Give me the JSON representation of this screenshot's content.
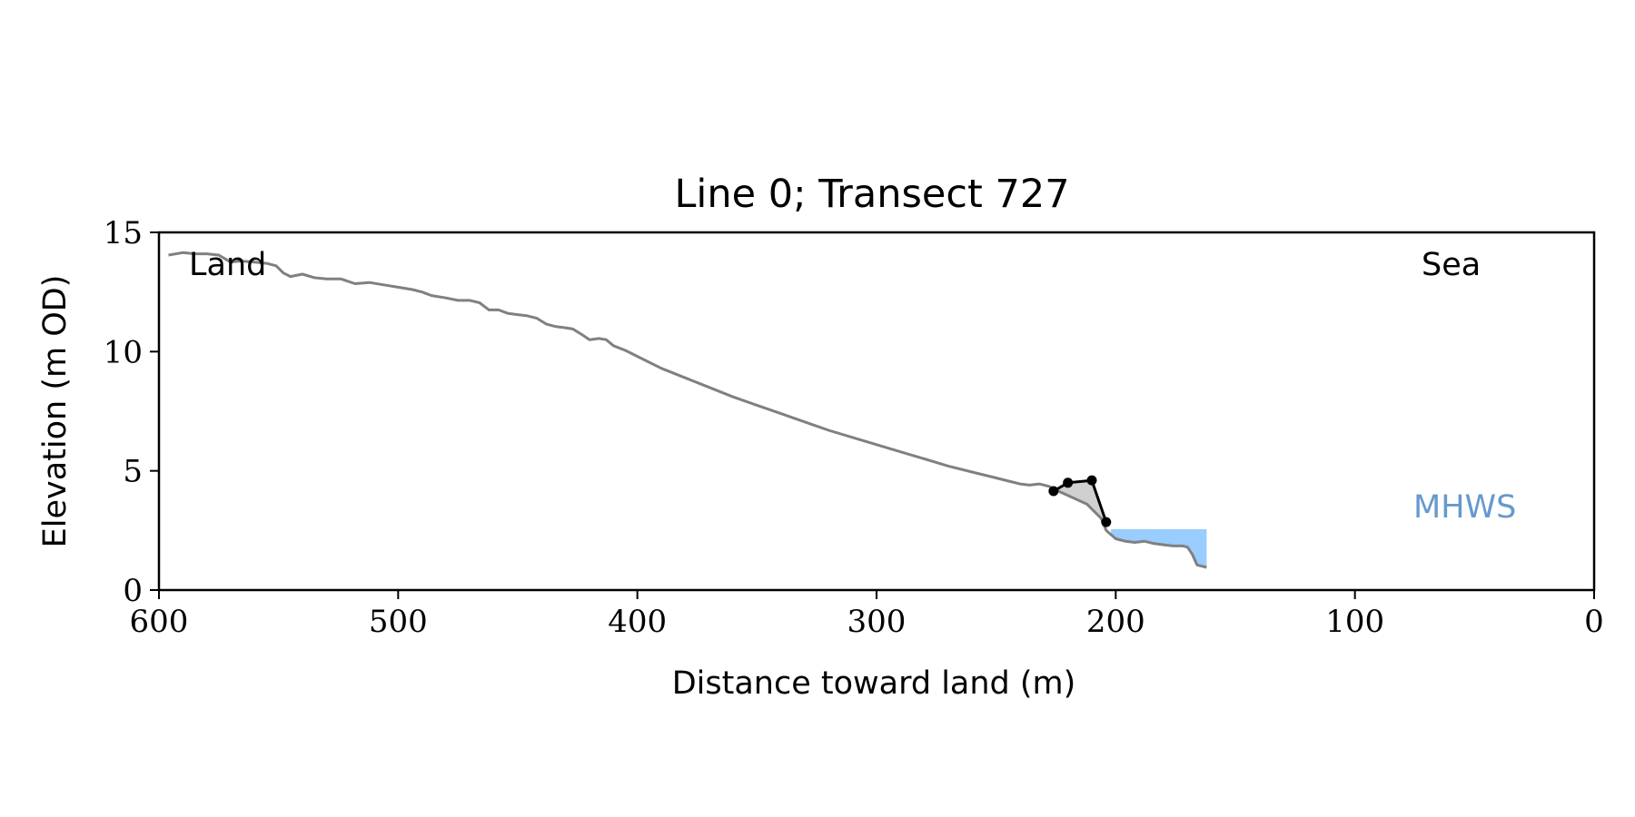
{
  "chart_data": {
    "type": "line",
    "title": "Line 0; Transect 727",
    "xlabel": "Distance toward land (m)",
    "ylabel": "Elevation (m OD)",
    "xlim": [
      600,
      0
    ],
    "ylim": [
      0,
      15
    ],
    "x_ticks": [
      600,
      500,
      400,
      300,
      200,
      100,
      0
    ],
    "y_ticks": [
      0,
      5,
      10,
      15
    ],
    "grid": false,
    "annotations": {
      "land": "Land",
      "sea": "Sea",
      "mhws": "MHWS"
    },
    "colors": {
      "profile": "#808080",
      "dune": "#000000",
      "dune_fill": "#d0d0d0",
      "mhws_fill": "#99ccff",
      "mhws_text": "#6699cc"
    },
    "series": [
      {
        "key": "profile",
        "points": [
          [
            596,
            14.05
          ],
          [
            590,
            14.15
          ],
          [
            585,
            14.1
          ],
          [
            580,
            14.1
          ],
          [
            575,
            14.05
          ],
          [
            570,
            13.75
          ],
          [
            566,
            13.8
          ],
          [
            560,
            13.75
          ],
          [
            555,
            13.7
          ],
          [
            551,
            13.6
          ],
          [
            548,
            13.3
          ],
          [
            545,
            13.15
          ],
          [
            540,
            13.25
          ],
          [
            535,
            13.1
          ],
          [
            530,
            13.05
          ],
          [
            524,
            13.05
          ],
          [
            518,
            12.85
          ],
          [
            512,
            12.9
          ],
          [
            506,
            12.8
          ],
          [
            500,
            12.7
          ],
          [
            494,
            12.6
          ],
          [
            490,
            12.5
          ],
          [
            486,
            12.35
          ],
          [
            480,
            12.25
          ],
          [
            475,
            12.15
          ],
          [
            470,
            12.15
          ],
          [
            466,
            12.05
          ],
          [
            462,
            11.75
          ],
          [
            458,
            11.75
          ],
          [
            454,
            11.6
          ],
          [
            450,
            11.55
          ],
          [
            446,
            11.5
          ],
          [
            442,
            11.4
          ],
          [
            438,
            11.15
          ],
          [
            434,
            11.05
          ],
          [
            430,
            11.0
          ],
          [
            427,
            10.95
          ],
          [
            423,
            10.7
          ],
          [
            420,
            10.5
          ],
          [
            416,
            10.55
          ],
          [
            413,
            10.5
          ],
          [
            410,
            10.25
          ],
          [
            405,
            10.05
          ],
          [
            400,
            9.8
          ],
          [
            390,
            9.3
          ],
          [
            380,
            8.9
          ],
          [
            370,
            8.5
          ],
          [
            360,
            8.1
          ],
          [
            350,
            7.75
          ],
          [
            340,
            7.4
          ],
          [
            330,
            7.05
          ],
          [
            320,
            6.7
          ],
          [
            310,
            6.4
          ],
          [
            300,
            6.1
          ],
          [
            290,
            5.8
          ],
          [
            280,
            5.5
          ],
          [
            270,
            5.2
          ],
          [
            260,
            4.95
          ],
          [
            250,
            4.7
          ],
          [
            244,
            4.55
          ],
          [
            240,
            4.45
          ],
          [
            236,
            4.4
          ],
          [
            232,
            4.45
          ],
          [
            228,
            4.35
          ],
          [
            224,
            4.15
          ],
          [
            212,
            3.6
          ],
          [
            206,
            3.0
          ],
          [
            204,
            2.5
          ],
          [
            200,
            2.15
          ],
          [
            196,
            2.05
          ],
          [
            192,
            2.0
          ],
          [
            188,
            2.05
          ],
          [
            184,
            1.95
          ],
          [
            180,
            1.9
          ],
          [
            176,
            1.85
          ],
          [
            172,
            1.85
          ],
          [
            170,
            1.8
          ],
          [
            168,
            1.5
          ],
          [
            166,
            1.05
          ],
          [
            164,
            1.0
          ],
          [
            162,
            0.95
          ]
        ]
      },
      {
        "key": "dune",
        "points": [
          [
            226,
            4.15
          ],
          [
            220,
            4.5
          ],
          [
            210,
            4.6
          ],
          [
            204,
            2.85
          ]
        ]
      },
      {
        "key": "mhws",
        "x_start": 202,
        "x_end": 162,
        "y_top": 2.55
      }
    ]
  }
}
